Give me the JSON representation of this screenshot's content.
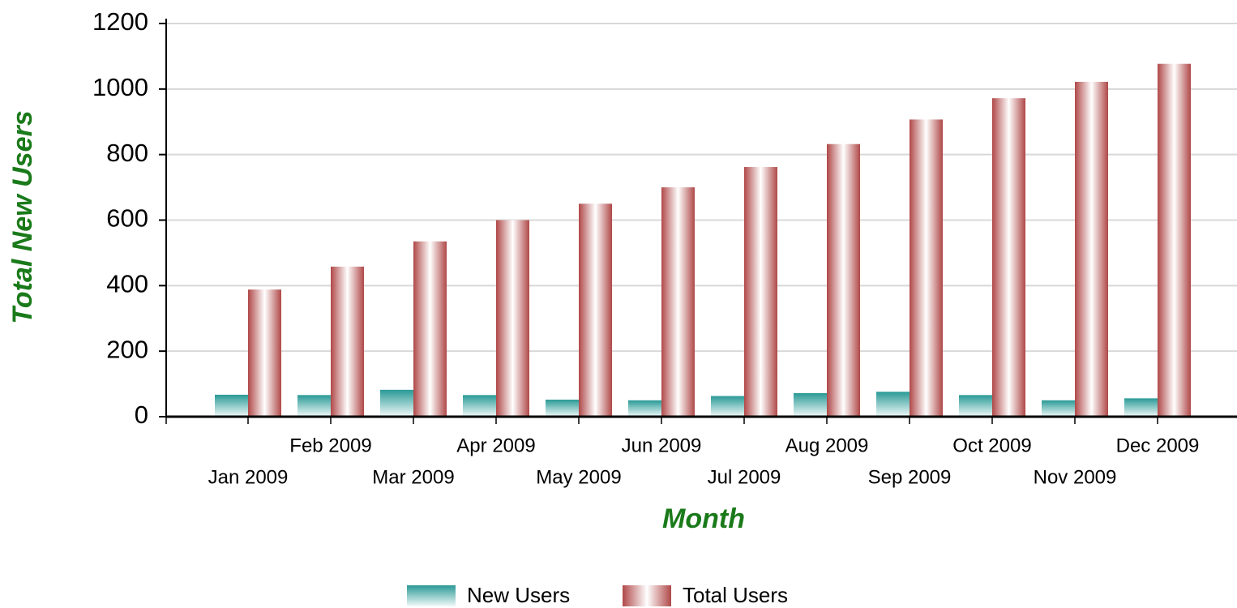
{
  "chart_data": {
    "type": "bar",
    "x_label": "Month",
    "y_label": "Total New Users",
    "categories": [
      "Jan 2009",
      "Feb 2009",
      "Mar 2009",
      "Apr 2009",
      "May 2009",
      "Jun 2009",
      "Jul 2009",
      "Aug 2009",
      "Sep 2009",
      "Oct 2009",
      "Nov 2009",
      "Dec 2009"
    ],
    "series": [
      {
        "name": "New Users",
        "color": "#2a9a96",
        "values": [
          67,
          66,
          82,
          66,
          52,
          50,
          63,
          72,
          76,
          66,
          50,
          56
        ]
      },
      {
        "name": "Total Users",
        "color": "#b04848",
        "values": [
          388,
          458,
          535,
          600,
          650,
          700,
          762,
          832,
          907,
          972,
          1022,
          1077
        ]
      }
    ],
    "ylim": [
      0,
      1200
    ],
    "yticks": [
      0,
      200,
      400,
      600,
      800,
      1000,
      1200
    ],
    "grid": true,
    "legend": "bottom"
  }
}
